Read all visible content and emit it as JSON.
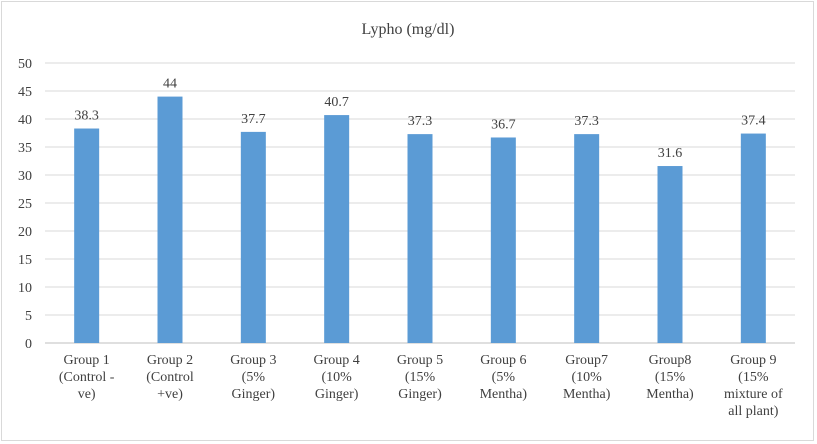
{
  "chart_data": {
    "type": "bar",
    "title": "Lypho (mg/dl)",
    "categories": [
      [
        "Group 1",
        "(Control -",
        "ve)"
      ],
      [
        "Group 2",
        "(Control",
        "+ve)"
      ],
      [
        "Group 3",
        "(5%",
        "Ginger)"
      ],
      [
        "Group 4",
        "(10%",
        "Ginger)"
      ],
      [
        "Group 5",
        "(15%",
        "Ginger)"
      ],
      [
        "Group 6",
        "(5%",
        "Mentha)"
      ],
      [
        "Group7",
        "(10%",
        "Mentha)"
      ],
      [
        "Group8",
        "(15%",
        "Mentha)"
      ],
      [
        "Group 9",
        "(15%",
        "mixture of",
        "all plant)"
      ]
    ],
    "values": [
      38.3,
      44,
      37.7,
      40.7,
      37.3,
      36.7,
      37.3,
      31.6,
      37.4
    ],
    "data_labels": [
      "38.3",
      "44",
      "37.7",
      "40.7",
      "37.3",
      "36.7",
      "37.3",
      "31.6",
      "37.4"
    ],
    "ylim": [
      0,
      50
    ],
    "yticks": [
      0,
      5,
      10,
      15,
      20,
      25,
      30,
      35,
      40,
      45,
      50
    ],
    "xlabel": "",
    "ylabel": "",
    "grid": true,
    "legend": "none",
    "bar_color": "#5b9bd5"
  }
}
